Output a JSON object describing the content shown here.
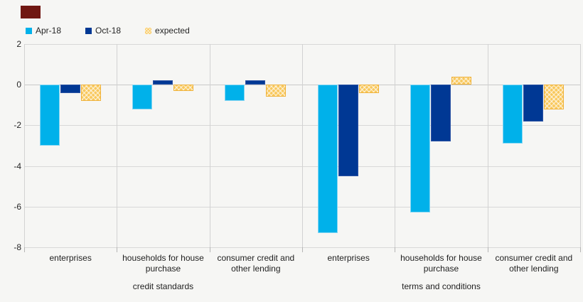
{
  "legend": {
    "items": [
      {
        "label": "Apr-18",
        "color": "#00b1ea",
        "swatch_icon": "square-swatch",
        "pattern": false
      },
      {
        "label": "Oct-18",
        "color": "#003894",
        "swatch_icon": "square-swatch",
        "pattern": false
      },
      {
        "label": "expected",
        "color": "#f8c75a",
        "swatch_icon": "square-swatch-hatched",
        "pattern": true
      }
    ]
  },
  "colors": {
    "apr_18": "#00b1ea",
    "oct_18": "#003894",
    "expected": "#f8c75a",
    "gridline": "#d8d8d8",
    "background": "#f6f6f4",
    "corner_marker": "#701712",
    "text": "#262626"
  },
  "chart_data": {
    "type": "bar",
    "title": "",
    "xlabel": "",
    "ylabel": "",
    "ylim": [
      -8,
      2
    ],
    "y_ticks": [
      2,
      0,
      -2,
      -4,
      -6,
      -8
    ],
    "grid": true,
    "legend_position": "top-left",
    "sections": [
      {
        "label": "credit standards",
        "categories": [
          "enterprises",
          "households for house purchase",
          "consumer credit and other lending"
        ]
      },
      {
        "label": "terms and conditions",
        "categories": [
          "enterprises",
          "households for house purchase",
          "consumer credit and other lending"
        ]
      }
    ],
    "categories": [
      "enterprises",
      "households for house purchase",
      "consumer credit and other lending",
      "enterprises",
      "households for house purchase",
      "consumer credit and other lending"
    ],
    "series": [
      {
        "name": "Apr-18",
        "values": [
          -3.0,
          -1.2,
          -0.8,
          -7.3,
          -6.3,
          -2.9
        ]
      },
      {
        "name": "Oct-18",
        "values": [
          -0.4,
          0.2,
          0.2,
          -4.5,
          -2.8,
          -1.8
        ]
      },
      {
        "name": "expected",
        "values": [
          -0.8,
          -0.3,
          -0.6,
          -0.4,
          0.4,
          -1.2
        ]
      }
    ]
  }
}
